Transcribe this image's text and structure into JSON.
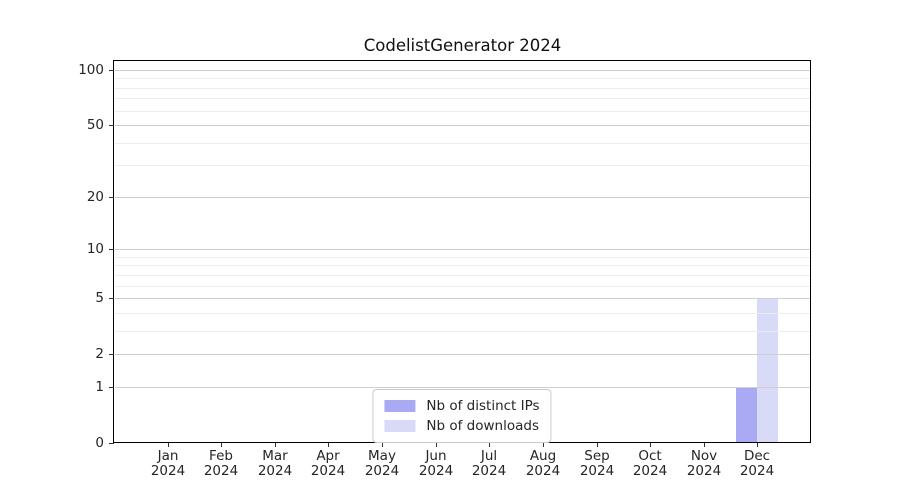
{
  "title": "CodelistGenerator 2024",
  "chart_data": {
    "type": "bar",
    "title": "CodelistGenerator 2024",
    "x_months": [
      "Jan",
      "Feb",
      "Mar",
      "Apr",
      "May",
      "Jun",
      "Jul",
      "Aug",
      "Sep",
      "Oct",
      "Nov",
      "Dec"
    ],
    "x_year": "2024",
    "series": [
      {
        "name": "Nb of distinct IPs",
        "color": "#a9a9f4",
        "values": [
          0,
          0,
          0,
          0,
          0,
          0,
          0,
          0,
          0,
          0,
          0,
          1
        ]
      },
      {
        "name": "Nb of downloads",
        "color": "#d9d9f8",
        "values": [
          0,
          0,
          0,
          0,
          0,
          0,
          0,
          0,
          0,
          0,
          0,
          5
        ]
      }
    ],
    "y_scale": "log1p",
    "ylim": [
      0,
      100
    ],
    "y_major_ticks": [
      0,
      1,
      2,
      5,
      10,
      20,
      50,
      100
    ],
    "y_minor_gridlines": [
      3,
      4,
      6,
      7,
      8,
      9,
      30,
      40,
      60,
      70,
      80,
      90
    ],
    "grid": "horizontal",
    "legend_position": "lower center",
    "colors": {
      "major_grid": "#cfcfcf",
      "minor_grid": "#ececec",
      "axis": "#000000",
      "tick": "#333333",
      "text": "#262626",
      "background": "#ffffff"
    }
  }
}
